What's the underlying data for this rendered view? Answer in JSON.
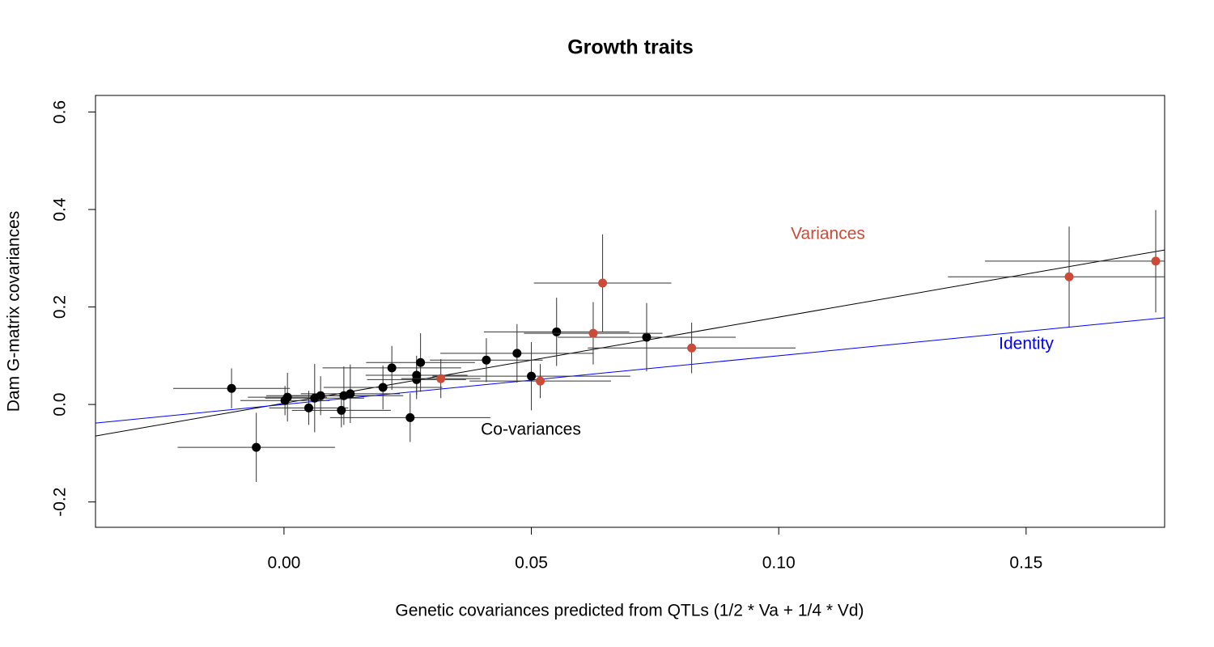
{
  "chart_data": {
    "type": "scatter",
    "title": "Growth traits",
    "xlabel": "Genetic covariances predicted from QTLs (1/2 * Va + 1/4 * Vd)",
    "ylabel": "Dam G-matrix covariances",
    "xlim": [
      -0.0381,
      0.178
    ],
    "ylim": [
      -0.252,
      0.634
    ],
    "xticks": [
      {
        "value": 0,
        "label": "0.00"
      },
      {
        "value": 0.05,
        "label": "0.05"
      },
      {
        "value": 0.1,
        "label": "0.10"
      },
      {
        "value": 0.15,
        "label": "0.15"
      }
    ],
    "yticks": [
      -0.2,
      {
        "value": 0,
        "label": "0.0"
      },
      0.2,
      0.4,
      0.6
    ],
    "series": [
      {
        "name": "Co-variances",
        "color": "#000000",
        "x": [
          -0.0106,
          -0.0056,
          0.0002,
          0.0007,
          0.005,
          0.0062,
          0.0074,
          0.0116,
          0.0121,
          0.0134,
          0.02,
          0.0218,
          0.0255,
          0.0268,
          0.0268,
          0.0276,
          0.0409,
          0.0471,
          0.05,
          0.0551,
          0.0733
        ],
        "values": [
          0.033,
          -0.088,
          0.008,
          0.015,
          -0.007,
          0.013,
          0.018,
          -0.012,
          0.018,
          0.022,
          0.035,
          0.075,
          -0.027,
          0.06,
          0.051,
          0.086,
          0.091,
          0.105,
          0.058,
          0.149,
          0.138
        ],
        "xerr": [
          0.0118,
          0.0159,
          0.009,
          0.008,
          0.008,
          0.01,
          0.011,
          0.01,
          0.012,
          0.01,
          0.012,
          0.014,
          0.0162,
          0.0103,
          0.01,
          0.011,
          0.0114,
          0.0155,
          0.02,
          0.0147,
          0.018
        ],
        "yerr": [
          0.041,
          0.071,
          0.03,
          0.05,
          0.035,
          0.07,
          0.04,
          0.035,
          0.06,
          0.06,
          0.045,
          0.045,
          0.05,
          0.04,
          0.04,
          0.06,
          0.045,
          0.06,
          0.07,
          0.07,
          0.07
        ]
      },
      {
        "name": "Variances",
        "color": "#cc4b37",
        "x": [
          0.0317,
          0.0518,
          0.0625,
          0.0644,
          0.0824,
          0.1587,
          0.1762
        ],
        "values": [
          0.053,
          0.048,
          0.146,
          0.249,
          0.116,
          0.262,
          0.294
        ],
        "xerr": [
          0.008,
          0.0143,
          0.014,
          0.0139,
          0.021,
          0.0245,
          0.0345
        ],
        "yerr": [
          0.04,
          0.035,
          0.064,
          0.1,
          0.052,
          0.103,
          0.105
        ]
      }
    ],
    "lines": [
      {
        "intercept": 0.0026,
        "slope": 1.766,
        "color": "#000000"
      },
      {
        "name": "Identity",
        "intercept": 0,
        "slope": 1,
        "color": "#0000ff"
      }
    ]
  }
}
